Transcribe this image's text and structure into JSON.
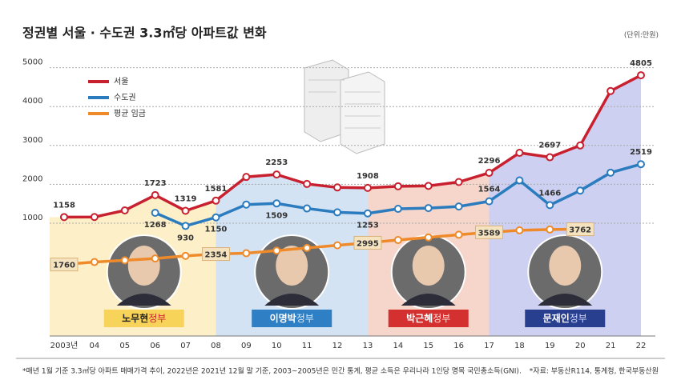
{
  "chart_data": {
    "type": "line",
    "title": "정권별 서울 · 수도권 3.3㎡당 아파트값 변화",
    "unit": "(단위:만원)",
    "categories": [
      "2003년",
      "04",
      "05",
      "06",
      "07",
      "08",
      "09",
      "10",
      "11",
      "12",
      "13",
      "14",
      "15",
      "16",
      "17",
      "18",
      "19",
      "20",
      "21",
      "22"
    ],
    "ylim": [
      -1900,
      5300
    ],
    "yticks": [
      1000,
      2000,
      3000,
      4000,
      5000
    ],
    "y2lim": [
      -2300,
      13600
    ],
    "grid": true,
    "legend": "top-left",
    "series": [
      {
        "name": "서울",
        "color": "#c8202f",
        "values": [
          1158,
          1160,
          1330,
          1723,
          1319,
          1581,
          2190,
          2253,
          2010,
          1920,
          1908,
          1950,
          1960,
          2060,
          2296,
          2810,
          2697,
          3000,
          4400,
          4805
        ],
        "labeled_points": [
          0,
          3,
          4,
          5,
          7,
          10,
          14,
          16,
          19
        ]
      },
      {
        "name": "수도권",
        "color": "#2b7bbf",
        "values": [
          null,
          null,
          null,
          1268,
          930,
          1150,
          1480,
          1509,
          1380,
          1280,
          1253,
          1370,
          1390,
          1430,
          1564,
          2100,
          1466,
          1840,
          2300,
          2519
        ],
        "labeled_points": [
          3,
          4,
          5,
          7,
          10,
          14,
          16,
          19
        ]
      },
      {
        "name": "평균 임금",
        "color": "#ef8a2a",
        "axis": "y2",
        "values": [
          1760,
          1900,
          2000,
          2100,
          2250,
          2354,
          2400,
          2550,
          2700,
          2850,
          2995,
          3150,
          3300,
          3450,
          3589,
          3700,
          3750,
          3762,
          null,
          null
        ],
        "labeled_points": [
          0,
          5,
          10,
          14,
          17
        ]
      }
    ],
    "eras": [
      {
        "name": "노무현",
        "suffix": "정부",
        "from": "2003년",
        "to": "08",
        "color": "#fdf0c8",
        "box": "#f7d35a",
        "text": "#222",
        "suffix_color": "#c8202f"
      },
      {
        "name": "이명박",
        "suffix": "정부",
        "from": "08",
        "to": "13",
        "color": "#d3e3f3",
        "box": "#2f7fc4",
        "text": "#fff",
        "suffix_color": "#d8ecff"
      },
      {
        "name": "박근혜",
        "suffix": "정부",
        "from": "13",
        "to": "17",
        "color": "#f6d5cb",
        "box": "#d3302f",
        "text": "#fff",
        "suffix_color": "#ffe0dc"
      },
      {
        "name": "문재인",
        "suffix": "정부",
        "from": "17",
        "to": "22",
        "color": "#cdd0f0",
        "box": "#283e8e",
        "text": "#fff",
        "suffix_color": "#d6dcff"
      }
    ],
    "footnote": "*매년 1월 기준 3.3㎡당 아파트 매매가격 추이, 2022년은 2021년 12월 말 기준, 2003~2005년은 민간 통계, 평균 소득은 우리나라 1인당 명목 국민총소득(GNI).",
    "source": "*자료: 부동산R114, 통계청, 한국부동산원"
  }
}
